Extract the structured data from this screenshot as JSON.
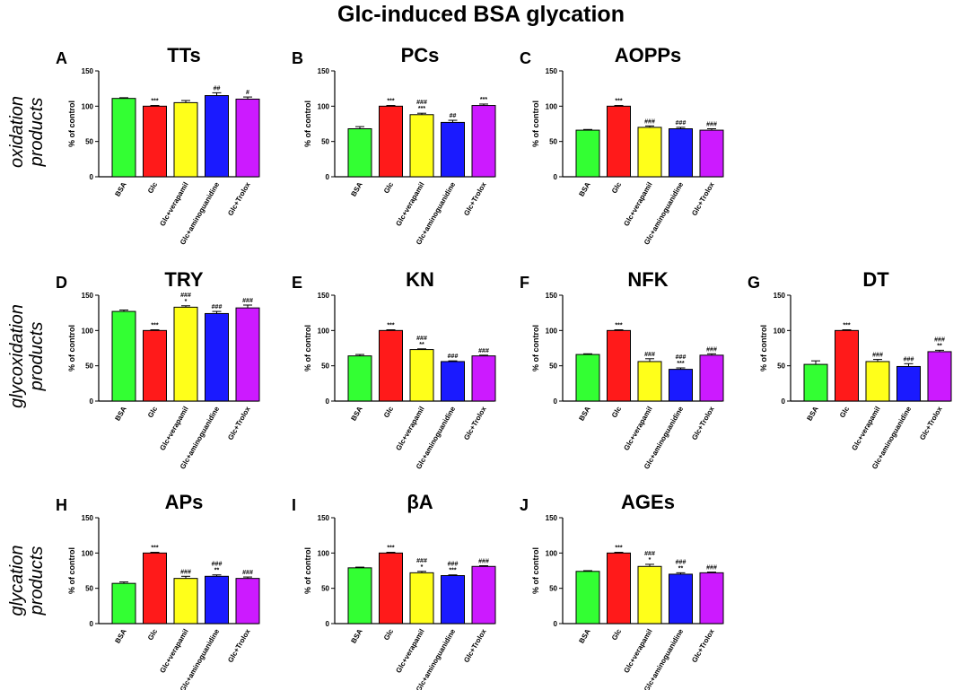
{
  "figure": {
    "title": "Glc-induced BSA glycation",
    "row_labels": [
      [
        "oxidation",
        "products"
      ],
      [
        "glycoxidation",
        "products"
      ],
      [
        "glycation",
        "products"
      ]
    ],
    "colors": [
      "#33ff33",
      "#ff1a1a",
      "#ffff1a",
      "#1a1aff",
      "#cc1aff"
    ]
  },
  "chart_data": [
    {
      "type": "bar",
      "panel": "A",
      "title": "TTs",
      "row": 0,
      "col": 0,
      "ylabel": "% of control",
      "ylim": [
        0,
        150
      ],
      "yticks": [
        0,
        50,
        100,
        150
      ],
      "categories": [
        "BSA",
        "Glc",
        "Glc+verapamil",
        "Glc+aminoguanidine",
        "Glc+Trolox"
      ],
      "values": [
        111,
        100,
        105,
        115,
        110
      ],
      "errors": [
        1,
        1,
        3,
        4,
        3
      ],
      "annotations": [
        [],
        [
          "***"
        ],
        [],
        [
          "##"
        ],
        [
          "#"
        ]
      ]
    },
    {
      "type": "bar",
      "panel": "B",
      "title": "PCs",
      "row": 0,
      "col": 1,
      "ylabel": "% of control",
      "ylim": [
        0,
        150
      ],
      "yticks": [
        0,
        50,
        100,
        150
      ],
      "categories": [
        "BSA",
        "Glc",
        "Glc+verapamil",
        "Glc+aminoguanidine",
        "Glc+Trolox"
      ],
      "values": [
        68,
        100,
        88,
        77,
        101
      ],
      "errors": [
        3,
        1,
        2,
        3,
        2
      ],
      "annotations": [
        [],
        [
          "***"
        ],
        [
          "###",
          "***"
        ],
        [
          "##"
        ],
        [
          "***"
        ]
      ]
    },
    {
      "type": "bar",
      "panel": "C",
      "title": "AOPPs",
      "row": 0,
      "col": 2,
      "ylabel": "% of control",
      "ylim": [
        0,
        150
      ],
      "yticks": [
        0,
        50,
        100,
        150
      ],
      "categories": [
        "BSA",
        "Glc",
        "Glc+verapamil",
        "Glc+aminoguanidine",
        "Glc+Trolox"
      ],
      "values": [
        66,
        100,
        70,
        68,
        66
      ],
      "errors": [
        1,
        1,
        2,
        2,
        2
      ],
      "annotations": [
        [],
        [
          "***"
        ],
        [
          "###"
        ],
        [
          "###"
        ],
        [
          "###"
        ]
      ]
    },
    {
      "type": "bar",
      "panel": "D",
      "title": "TRY",
      "row": 1,
      "col": 0,
      "ylabel": "% of control",
      "ylim": [
        0,
        150
      ],
      "yticks": [
        0,
        50,
        100,
        150
      ],
      "categories": [
        "BSA",
        "Glc",
        "Glc+verapamil",
        "Glc+aminoguanidine",
        "Glc+Trolox"
      ],
      "values": [
        127,
        100,
        133,
        124,
        132
      ],
      "errors": [
        2,
        1,
        2,
        3,
        4
      ],
      "annotations": [
        [],
        [
          "***"
        ],
        [
          "###",
          "*"
        ],
        [
          "###"
        ],
        [
          "###"
        ]
      ]
    },
    {
      "type": "bar",
      "panel": "E",
      "title": "KN",
      "row": 1,
      "col": 1,
      "ylabel": "% of control",
      "ylim": [
        0,
        150
      ],
      "yticks": [
        0,
        50,
        100,
        150
      ],
      "categories": [
        "BSA",
        "Glc",
        "Glc+verapamil",
        "Glc+aminoguanidine",
        "Glc+Trolox"
      ],
      "values": [
        64,
        100,
        73,
        56,
        64
      ],
      "errors": [
        2,
        1,
        1,
        1,
        1
      ],
      "annotations": [
        [],
        [
          "***"
        ],
        [
          "###",
          "**"
        ],
        [
          "###"
        ],
        [
          "###"
        ]
      ]
    },
    {
      "type": "bar",
      "panel": "F",
      "title": "NFK",
      "row": 1,
      "col": 2,
      "ylabel": "% of control",
      "ylim": [
        0,
        150
      ],
      "yticks": [
        0,
        50,
        100,
        150
      ],
      "categories": [
        "BSA",
        "Glc",
        "Glc+verapamil",
        "Glc+aminoguanidine",
        "Glc+Trolox"
      ],
      "values": [
        66,
        100,
        56,
        45,
        65
      ],
      "errors": [
        1,
        1,
        4,
        2,
        2
      ],
      "annotations": [
        [],
        [
          "***"
        ],
        [
          "###"
        ],
        [
          "###",
          "***"
        ],
        [
          "###"
        ]
      ]
    },
    {
      "type": "bar",
      "panel": "G",
      "title": "DT",
      "row": 1,
      "col": 3,
      "ylabel": "% of control",
      "ylim": [
        0,
        150
      ],
      "yticks": [
        0,
        50,
        100,
        150
      ],
      "categories": [
        "BSA",
        "Glc",
        "Glc+verapamil",
        "Glc+aminoguanidine",
        "Glc+Trolox"
      ],
      "values": [
        52,
        100,
        56,
        49,
        70
      ],
      "errors": [
        5,
        1,
        3,
        4,
        2
      ],
      "annotations": [
        [],
        [
          "***"
        ],
        [
          "###"
        ],
        [
          "###"
        ],
        [
          "###",
          "**"
        ]
      ]
    },
    {
      "type": "bar",
      "panel": "H",
      "title": "APs",
      "row": 2,
      "col": 0,
      "ylabel": "% of control",
      "ylim": [
        0,
        150
      ],
      "yticks": [
        0,
        50,
        100,
        150
      ],
      "categories": [
        "BSA",
        "Glc",
        "Glc+verapamil",
        "Glc+aminoguanidine",
        "Glc+Trolox"
      ],
      "values": [
        57,
        100,
        64,
        67,
        64
      ],
      "errors": [
        2,
        1,
        3,
        2,
        2
      ],
      "annotations": [
        [],
        [
          "***"
        ],
        [
          "###"
        ],
        [
          "###",
          "**"
        ],
        [
          "###"
        ]
      ]
    },
    {
      "type": "bar",
      "panel": "I",
      "title": "βA",
      "row": 2,
      "col": 1,
      "ylabel": "% of control",
      "ylim": [
        0,
        150
      ],
      "yticks": [
        0,
        50,
        100,
        150
      ],
      "categories": [
        "BSA",
        "Glc",
        "Glc+verapamil",
        "Glc+aminoguanidine",
        "Glc+Trolox"
      ],
      "values": [
        79,
        100,
        72,
        68,
        81
      ],
      "errors": [
        1,
        1,
        2,
        1,
        1
      ],
      "annotations": [
        [],
        [
          "***"
        ],
        [
          "###",
          "*"
        ],
        [
          "###",
          "***"
        ],
        [
          "###"
        ]
      ]
    },
    {
      "type": "bar",
      "panel": "J",
      "title": "AGEs",
      "row": 2,
      "col": 2,
      "ylabel": "% of control",
      "ylim": [
        0,
        150
      ],
      "yticks": [
        0,
        50,
        100,
        150
      ],
      "categories": [
        "BSA",
        "Glc",
        "Glc+verapamil",
        "Glc+aminoguanidine",
        "Glc+Trolox"
      ],
      "values": [
        74,
        100,
        81,
        70,
        72
      ],
      "errors": [
        1,
        1,
        3,
        2,
        1
      ],
      "annotations": [
        [],
        [
          "***"
        ],
        [
          "###",
          "*"
        ],
        [
          "###",
          "**"
        ],
        [
          "###"
        ]
      ]
    }
  ]
}
